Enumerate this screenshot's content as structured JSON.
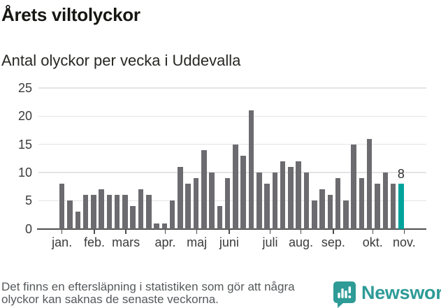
{
  "header": {
    "title": "Årets viltolyckor",
    "subtitle": "Antal olyckor per vecka i Uddevalla"
  },
  "chart_data": {
    "type": "bar",
    "title": "Årets viltolyckor",
    "subtitle": "Antal olyckor per vecka i Uddevalla",
    "xlabel": "",
    "ylabel": "",
    "x_unit": "vecka",
    "ylim": [
      0,
      25
    ],
    "y_ticks": [
      0,
      5,
      10,
      15,
      20,
      25
    ],
    "grid": "horizontal",
    "bar_color": "#6b6b70",
    "highlight_color": "#00a39c",
    "axis_color": "#4d4d4d",
    "gridline_color": "#e4e4e4",
    "values": [
      8,
      5,
      3,
      6,
      6,
      7,
      6,
      6,
      6,
      4,
      7,
      6,
      1,
      1,
      5,
      11,
      8,
      9,
      14,
      10,
      4,
      9,
      15,
      13,
      21,
      10,
      8,
      10,
      12,
      11,
      12,
      10,
      5,
      7,
      6,
      9,
      5,
      15,
      9,
      16,
      8,
      10,
      8,
      8
    ],
    "highlight_last_index": 43,
    "last_value_label": "8",
    "month_ticks": [
      {
        "label": "jan.",
        "week": 1
      },
      {
        "label": "feb.",
        "week": 5.1
      },
      {
        "label": "mars",
        "week": 9.1
      },
      {
        "label": "apr.",
        "week": 14.1
      },
      {
        "label": "maj",
        "week": 18.1
      },
      {
        "label": "juni",
        "week": 22.2
      },
      {
        "label": "juli",
        "week": 27.4
      },
      {
        "label": "aug.",
        "week": 31.3
      },
      {
        "label": "sep.",
        "week": 35.4
      },
      {
        "label": "okt.",
        "week": 40.4
      },
      {
        "label": "nov.",
        "week": 44.4
      }
    ]
  },
  "footer": {
    "note_lines": [
      "Det finns en eftersläpning i statistiken som gör att några",
      "olyckor kan saknas de senaste veckorna."
    ],
    "brand": "Newsworthy",
    "brand_color": "#2e9b97"
  }
}
